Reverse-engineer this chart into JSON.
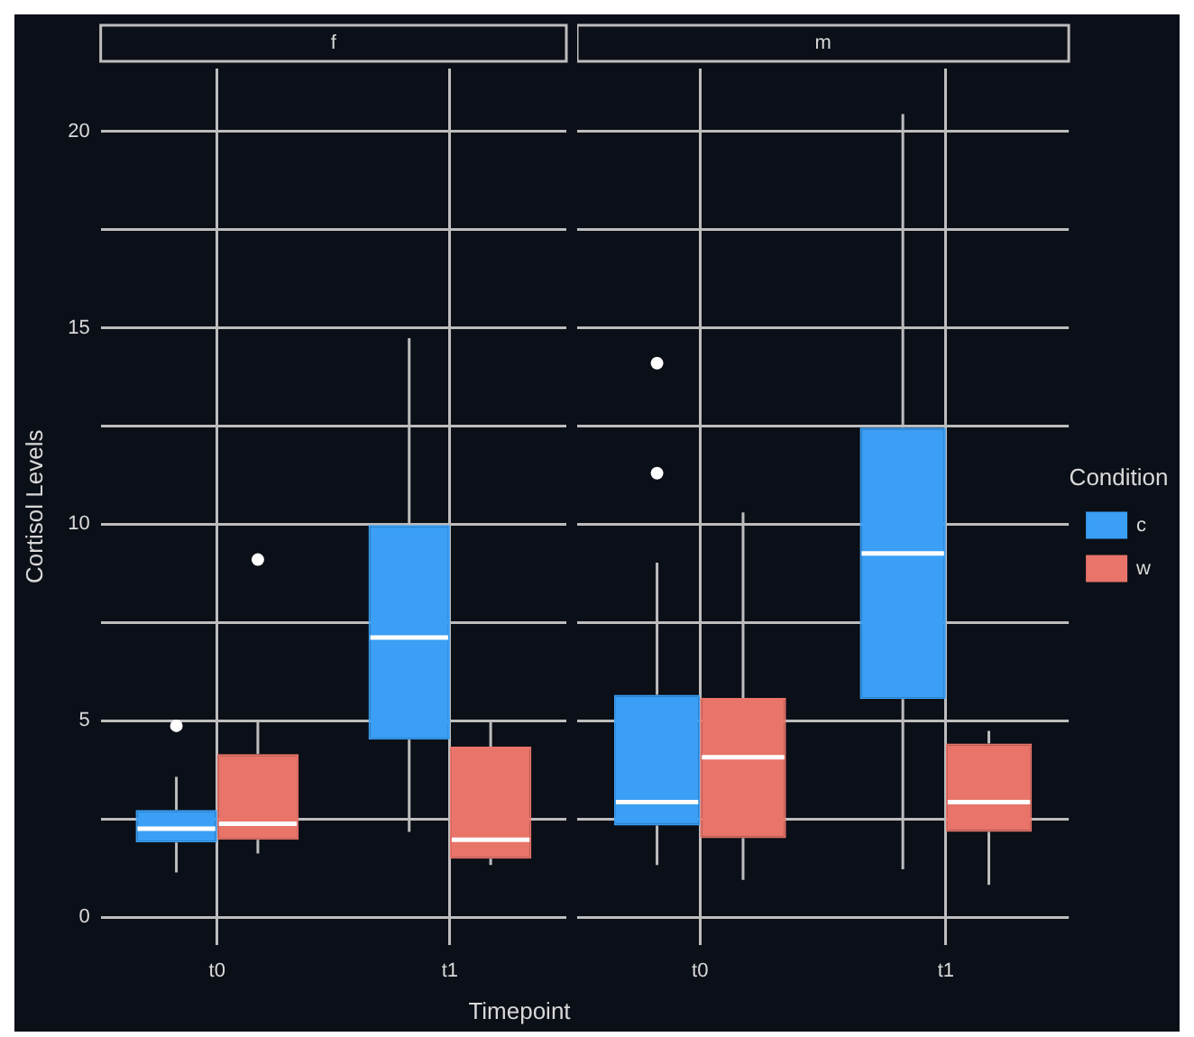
{
  "chart_data": [
    {
      "type": "box",
      "title": "f",
      "xlabel": "Timepoint",
      "ylabel": "Cortisol Levels",
      "categories": [
        "t0",
        "t1"
      ],
      "ylim": [
        -0.7,
        21.6
      ],
      "yticks": [
        0,
        {
          "value": 2.5,
          "label": null
        },
        5,
        {
          "value": 7.5,
          "label": null
        },
        10,
        {
          "value": 12.5,
          "label": null
        },
        15,
        {
          "value": 17.5,
          "label": null
        },
        20
      ],
      "grid": true,
      "legend": false,
      "series": [
        {
          "color": "#3a9ff5",
          "boxes": [
            {
              "low": 1.14,
              "q1": 1.9,
              "median": 2.25,
              "q3": 2.73,
              "high": 3.57,
              "outliers": [
                4.87
              ]
            },
            {
              "low": 2.17,
              "q1": 4.52,
              "median": 7.12,
              "q3": 9.98,
              "high": 14.74
            }
          ]
        },
        {
          "color": "#e8746a",
          "boxes": [
            {
              "low": 1.62,
              "q1": 1.97,
              "median": 2.38,
              "q3": 4.15,
              "high": 4.98,
              "outliers": [
                9.1
              ]
            },
            {
              "low": 1.33,
              "q1": 1.49,
              "median": 1.97,
              "q3": 4.34,
              "high": 4.98
            }
          ]
        }
      ]
    },
    {
      "type": "box",
      "title": "m",
      "legend_title": "Condition",
      "categories": [
        "t0",
        "t1"
      ],
      "ylim": [
        -0.7,
        21.6
      ],
      "yticks": [
        0,
        {
          "value": 2.5,
          "label": null
        },
        5,
        {
          "value": 7.5,
          "label": null
        },
        10,
        {
          "value": 12.5,
          "label": null
        },
        15,
        {
          "value": 17.5,
          "label": null
        },
        20
      ],
      "grid": true,
      "legend": "right",
      "tick_labels": "x",
      "series": [
        {
          "name": "c",
          "color": "#3a9ff5",
          "boxes": [
            {
              "low": 1.33,
              "q1": 2.33,
              "median": 2.93,
              "q3": 5.66,
              "high": 9.02,
              "outliers": [
                14.1,
                11.3
              ]
            },
            {
              "low": 1.22,
              "q1": 5.55,
              "median": 9.26,
              "q3": 12.46,
              "high": 20.44
            }
          ]
        },
        {
          "name": "w",
          "color": "#e8746a",
          "boxes": [
            {
              "low": 0.95,
              "q1": 2.01,
              "median": 4.07,
              "q3": 5.58,
              "high": 10.3
            },
            {
              "low": 0.82,
              "q1": 2.17,
              "median": 2.93,
              "q3": 4.42,
              "high": 4.74
            }
          ]
        }
      ]
    }
  ]
}
